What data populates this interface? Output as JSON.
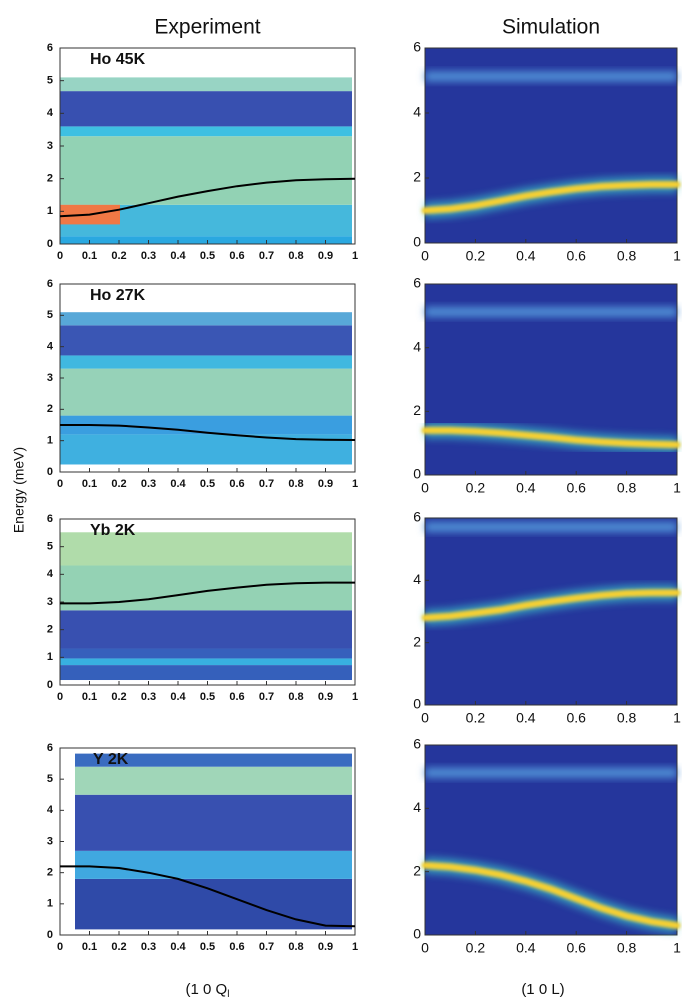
{
  "chart_data": [
    {
      "type": "line",
      "title": "Experiment",
      "annotation": "Ho 45K",
      "x": [
        0,
        0.1,
        0.2,
        0.3,
        0.4,
        0.5,
        0.6,
        0.7,
        0.8,
        0.9,
        1
      ],
      "xlim": [
        0,
        1
      ],
      "ylim": [
        0,
        6
      ],
      "xticks": [
        0,
        0.1,
        0.2,
        0.3,
        0.4,
        0.5,
        0.6,
        0.7,
        0.8,
        0.9,
        1
      ],
      "yticks": [
        0,
        1,
        2,
        3,
        4,
        5,
        6
      ],
      "series": [
        {
          "color": "#000000",
          "values": [
            0.85,
            0.9,
            1.05,
            1.25,
            1.45,
            1.62,
            1.77,
            1.88,
            1.95,
            1.98,
            2.0
          ]
        }
      ]
    },
    {
      "type": "line",
      "title": "Simulation",
      "x": [
        0,
        0.1,
        0.2,
        0.3,
        0.4,
        0.5,
        0.6,
        0.7,
        0.8,
        0.9,
        1
      ],
      "xlim": [
        0,
        1
      ],
      "ylim": [
        0,
        6
      ],
      "xticks": [
        0,
        0.2,
        0.4,
        0.6,
        0.8,
        1
      ],
      "yticks": [
        0,
        2,
        4,
        6
      ],
      "series": [
        {
          "color": "#f6d030",
          "values": [
            1.0,
            1.05,
            1.15,
            1.3,
            1.45,
            1.57,
            1.67,
            1.74,
            1.78,
            1.8,
            1.8
          ]
        }
      ]
    },
    {
      "type": "line",
      "annotation": "Ho 27K",
      "ylabel": "Energy (meV)",
      "x": [
        0,
        0.1,
        0.2,
        0.3,
        0.4,
        0.5,
        0.6,
        0.7,
        0.8,
        0.9,
        1
      ],
      "xlim": [
        0,
        1
      ],
      "ylim": [
        0,
        6
      ],
      "xticks": [
        0,
        0.1,
        0.2,
        0.3,
        0.4,
        0.5,
        0.6,
        0.7,
        0.8,
        0.9,
        1
      ],
      "yticks": [
        0,
        1,
        2,
        3,
        4,
        5,
        6
      ],
      "series": [
        {
          "color": "#000000",
          "values": [
            1.5,
            1.5,
            1.48,
            1.42,
            1.35,
            1.25,
            1.17,
            1.1,
            1.05,
            1.03,
            1.02
          ]
        }
      ]
    },
    {
      "type": "line",
      "x": [
        0,
        0.1,
        0.2,
        0.3,
        0.4,
        0.5,
        0.6,
        0.7,
        0.8,
        0.9,
        1
      ],
      "xlim": [
        0,
        1
      ],
      "ylim": [
        0,
        6
      ],
      "xticks": [
        0,
        0.2,
        0.4,
        0.6,
        0.8,
        1
      ],
      "yticks": [
        0,
        2,
        4,
        6
      ],
      "series": [
        {
          "color": "#f6d030",
          "values": [
            1.4,
            1.4,
            1.37,
            1.32,
            1.25,
            1.18,
            1.1,
            1.04,
            1.0,
            0.97,
            0.95
          ]
        }
      ]
    },
    {
      "type": "line",
      "annotation": "Yb  2K",
      "x": [
        0,
        0.1,
        0.2,
        0.3,
        0.4,
        0.5,
        0.6,
        0.7,
        0.8,
        0.9,
        1
      ],
      "xlim": [
        0,
        1
      ],
      "ylim": [
        0,
        6
      ],
      "xticks": [
        0,
        0.1,
        0.2,
        0.3,
        0.4,
        0.5,
        0.6,
        0.7,
        0.8,
        0.9,
        1
      ],
      "yticks": [
        0,
        1,
        2,
        3,
        4,
        5,
        6
      ],
      "series": [
        {
          "color": "#000000",
          "values": [
            2.95,
            2.95,
            3.0,
            3.1,
            3.25,
            3.4,
            3.52,
            3.62,
            3.68,
            3.7,
            3.7
          ]
        }
      ]
    },
    {
      "type": "line",
      "x": [
        0,
        0.1,
        0.2,
        0.3,
        0.4,
        0.5,
        0.6,
        0.7,
        0.8,
        0.9,
        1
      ],
      "xlim": [
        0,
        1
      ],
      "ylim": [
        0,
        6
      ],
      "xticks": [
        0,
        0.2,
        0.4,
        0.6,
        0.8,
        1
      ],
      "yticks": [
        0,
        2,
        4,
        6
      ],
      "series": [
        {
          "color": "#f6d030",
          "values": [
            2.8,
            2.85,
            2.95,
            3.05,
            3.2,
            3.32,
            3.43,
            3.52,
            3.58,
            3.6,
            3.6
          ]
        }
      ]
    },
    {
      "type": "line",
      "annotation": "Y  2K",
      "xlabel": "(1 0 Q",
      "xlabel_sub": "l",
      "x": [
        0,
        0.1,
        0.2,
        0.3,
        0.4,
        0.5,
        0.6,
        0.7,
        0.8,
        0.9,
        1
      ],
      "xlim": [
        0,
        1
      ],
      "ylim": [
        0,
        6
      ],
      "xticks": [
        0,
        0.1,
        0.2,
        0.3,
        0.4,
        0.5,
        0.6,
        0.7,
        0.8,
        0.9,
        1
      ],
      "yticks": [
        0,
        1,
        2,
        3,
        4,
        5,
        6
      ],
      "series": [
        {
          "color": "#000000",
          "values": [
            2.2,
            2.2,
            2.15,
            2.0,
            1.8,
            1.5,
            1.15,
            0.8,
            0.5,
            0.3,
            0.28
          ]
        }
      ]
    },
    {
      "type": "line",
      "xlabel": "(1 0 L)",
      "x": [
        0,
        0.1,
        0.2,
        0.3,
        0.4,
        0.5,
        0.6,
        0.7,
        0.8,
        0.9,
        1
      ],
      "xlim": [
        0,
        1
      ],
      "ylim": [
        0,
        6
      ],
      "xticks": [
        0,
        0.2,
        0.4,
        0.6,
        0.8,
        1
      ],
      "yticks": [
        0,
        2,
        4,
        6
      ],
      "series": [
        {
          "color": "#f6d030",
          "values": [
            2.2,
            2.15,
            2.05,
            1.9,
            1.7,
            1.45,
            1.15,
            0.85,
            0.6,
            0.42,
            0.3
          ]
        }
      ]
    }
  ]
}
